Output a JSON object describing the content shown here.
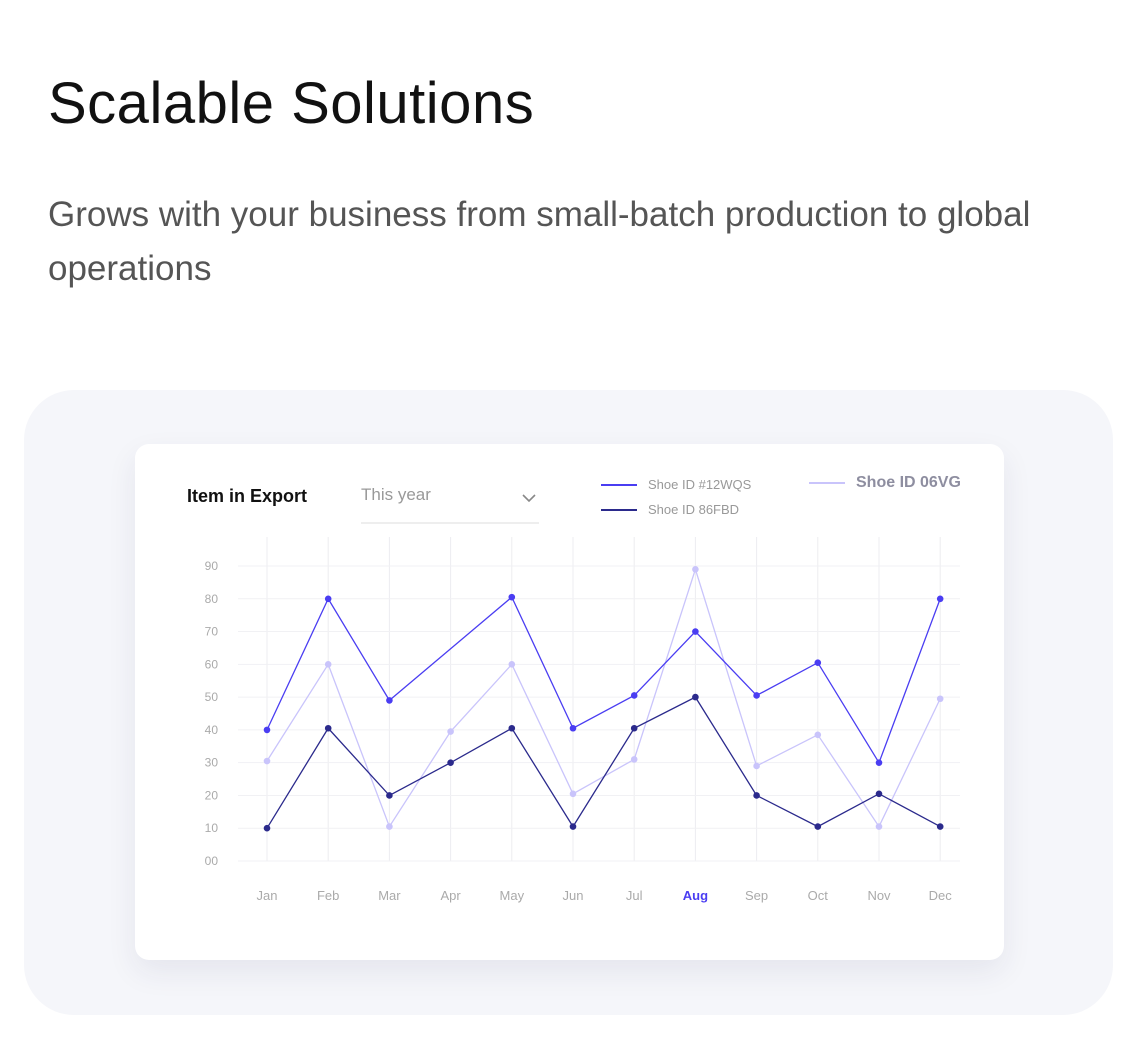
{
  "header": {
    "title": "Scalable Solutions",
    "subtitle": "Grows with your business from small-batch production to global operations"
  },
  "card": {
    "title": "Item in Export",
    "select": {
      "value": "This year",
      "icon": "chevron-down-icon"
    }
  },
  "chart_data": {
    "type": "line",
    "categories": [
      "Jan",
      "Feb",
      "Mar",
      "Apr",
      "May",
      "Jun",
      "Jul",
      "Aug",
      "Sep",
      "Oct",
      "Nov",
      "Dec"
    ],
    "highlighted_category": "Aug",
    "y_ticks": [
      "00",
      "10",
      "20",
      "30",
      "40",
      "50",
      "60",
      "70",
      "80",
      "90"
    ],
    "ylim": [
      0,
      90
    ],
    "grid": true,
    "legend_placement": "top-right",
    "series": [
      {
        "name": "Shoe ID #12WQS",
        "color": "#4a3df2",
        "values": [
          40,
          80,
          49,
          null,
          80.5,
          40.5,
          50.5,
          70,
          50.5,
          60.5,
          30,
          80
        ]
      },
      {
        "name": "Shoe ID 86FBD",
        "color": "#2b2a8c",
        "values": [
          10,
          40.5,
          20,
          30,
          40.5,
          10.5,
          40.5,
          50,
          20,
          10.5,
          20.5,
          10.5
        ]
      },
      {
        "name": "Shoe ID 06VG",
        "color": "#c9c4fb",
        "values": [
          30.5,
          60,
          10.5,
          39.5,
          60,
          20.5,
          31,
          89,
          29,
          38.5,
          10.5,
          49.5
        ]
      }
    ]
  }
}
